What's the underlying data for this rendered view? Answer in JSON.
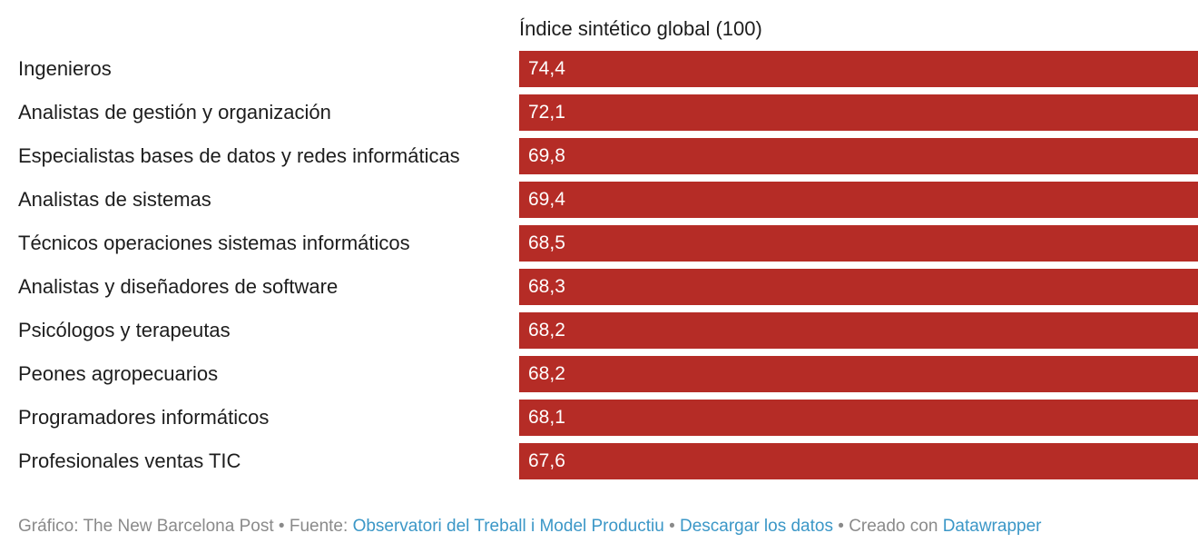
{
  "colors": {
    "bar": "#b52c26",
    "bar_text": "#ffffff",
    "text": "#1d1d1d",
    "footer_text": "#8a8a8a",
    "link": "#3b97c7"
  },
  "chart_data": {
    "type": "bar",
    "orientation": "horizontal",
    "column_header": "Índice sintético global (100)",
    "value_max": 100,
    "categories": [
      "Ingenieros",
      "Analistas de gestión y organización",
      "Especialistas bases de datos y redes informáticas",
      "Analistas de sistemas",
      "Técnicos operaciones sistemas informáticos",
      "Analistas y diseñadores de software",
      "Psicólogos y terapeutas",
      "Peones agropecuarios",
      "Programadores informáticos",
      "Profesionales ventas TIC"
    ],
    "values": [
      74.4,
      72.1,
      69.8,
      69.4,
      68.5,
      68.3,
      68.2,
      68.2,
      68.1,
      67.6
    ],
    "value_labels": [
      "74,4",
      "72,1",
      "69,8",
      "69,4",
      "68,5",
      "68,3",
      "68,2",
      "68,2",
      "68,1",
      "67,6"
    ],
    "bar_extent": "full-width (all bars fill the column)"
  },
  "footer": {
    "grafico": "Gráfico: The New Barcelona Post",
    "sep1": "•",
    "fuente_label": "Fuente:",
    "fuente_link": "Observatori del Treball i Model Productiu",
    "sep2": "•",
    "descargar": "Descargar los datos",
    "sep3": "•",
    "creado_label": "Creado con",
    "creado_link": "Datawrapper"
  }
}
